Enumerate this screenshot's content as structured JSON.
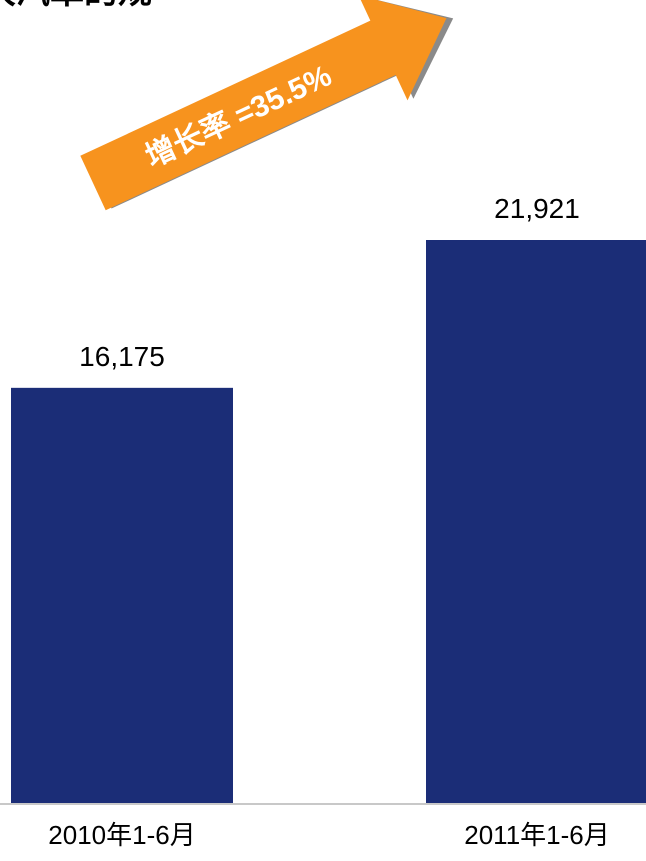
{
  "chart_data": {
    "type": "bar",
    "title": "",
    "title_fragment": "大汽車的规",
    "categories": [
      "2010年1-6月",
      "2011年1-6月"
    ],
    "values": [
      16175,
      21921
    ],
    "value_labels": [
      "16,175",
      "21,921"
    ],
    "xlabel": "",
    "ylabel": "",
    "ylim": [
      0,
      24000
    ],
    "grid": false,
    "legend": "none",
    "annotation": {
      "text": "增长率 =35.5%",
      "direction": "up-right"
    }
  },
  "colors": {
    "bar": "#1b2d77",
    "arrow": "#f7931e",
    "arrow_shadow": "#8a8a8a",
    "axis": "#c8c8c8",
    "text": "#000000",
    "arrow_text": "#ffffff"
  }
}
